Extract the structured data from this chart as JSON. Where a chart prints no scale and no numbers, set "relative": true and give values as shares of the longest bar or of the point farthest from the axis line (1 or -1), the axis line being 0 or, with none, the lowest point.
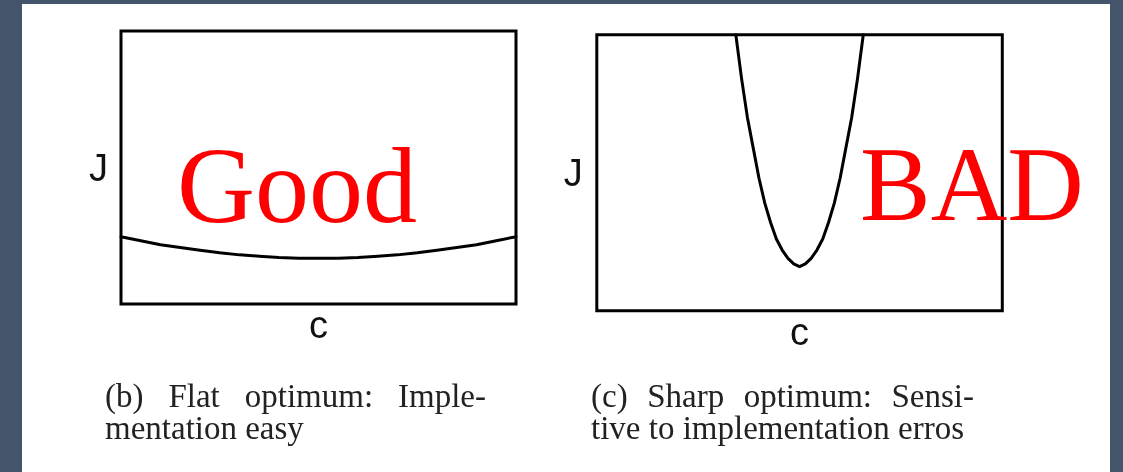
{
  "chart_data": [
    {
      "type": "line",
      "xlabel": "c",
      "ylabel": "J",
      "relative": true,
      "marker": "none",
      "line_style": "solid",
      "annotations": [
        "Good",
        "(b) Flat optimum: Imple-\nmentation easy"
      ],
      "categories": [
        null,
        null,
        null,
        null,
        null,
        null,
        null,
        null,
        null,
        null,
        null,
        null,
        null,
        null,
        null,
        null,
        null,
        null,
        null,
        null,
        null
      ],
      "series": [
        {
          "color": "#000000",
          "values": [
            1,
            0.94,
            0.88,
            0.84,
            0.8,
            0.76,
            0.73,
            0.71,
            0.69,
            0.68,
            0.68,
            0.68,
            0.69,
            0.71,
            0.73,
            0.76,
            0.8,
            0.84,
            0.88,
            0.94,
            1
          ]
        }
      ]
    },
    {
      "type": "line",
      "xlabel": "c",
      "ylabel": "J",
      "relative": true,
      "marker": "none",
      "line_style": "solid",
      "annotations": [
        "BAD",
        "(c) Sharp optimum: Sensi-\ntive to implementation erros"
      ],
      "categories": [
        null,
        null,
        null,
        null,
        null,
        null,
        null,
        null,
        null,
        null,
        null,
        null,
        null,
        null,
        null,
        null,
        null,
        null,
        null,
        null,
        null,
        null,
        null,
        null,
        null,
        null,
        null,
        null,
        null,
        null,
        null,
        null,
        null,
        null,
        null,
        null,
        null,
        null,
        null,
        null,
        null,
        null,
        null,
        null,
        null,
        null,
        null,
        null,
        null,
        null,
        null,
        null,
        null,
        null,
        null,
        null,
        null,
        null,
        null,
        null,
        null,
        null,
        null,
        null,
        null,
        null,
        null,
        null,
        null,
        null,
        null
      ],
      "series": [
        {
          "color": "#000000",
          "values": [
            null,
            null,
            null,
            null,
            null,
            null,
            null,
            null,
            null,
            null,
            null,
            null,
            null,
            null,
            null,
            null,
            null,
            null,
            null,
            null,
            null,
            null,
            null,
            null,
            1,
            0.84,
            0.7,
            0.59,
            0.48,
            0.39,
            0.32,
            0.26,
            0.22,
            0.19,
            0.17,
            0.16,
            0.17,
            0.19,
            0.22,
            0.26,
            0.32,
            0.39,
            0.48,
            0.59,
            0.7,
            0.84,
            1,
            null,
            null,
            null,
            null,
            null,
            null,
            null,
            null,
            null,
            null,
            null,
            null,
            null,
            null,
            null,
            null,
            null,
            null,
            null,
            null,
            null,
            null,
            null,
            null
          ]
        }
      ]
    }
  ]
}
